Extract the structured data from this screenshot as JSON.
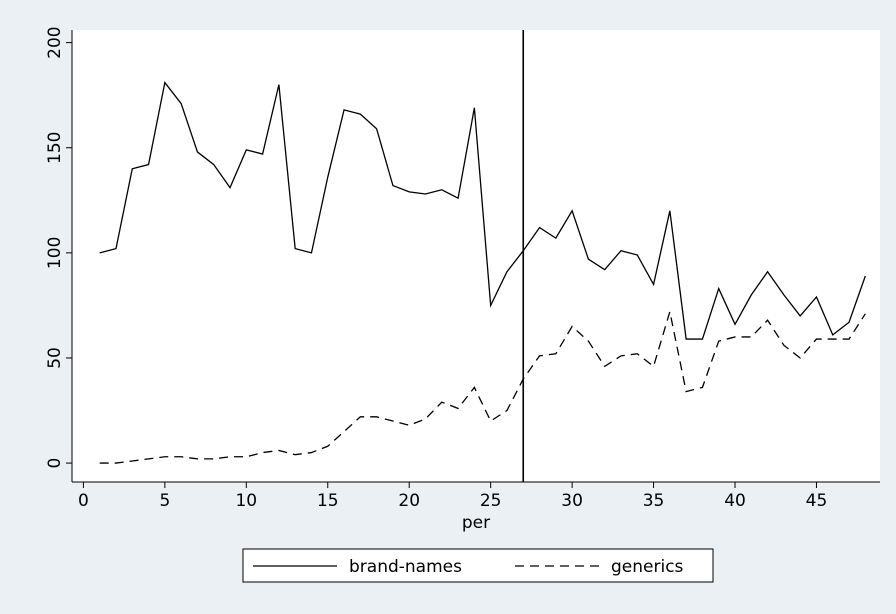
{
  "chart_data": {
    "type": "line",
    "x_label": "per",
    "x": [
      1,
      2,
      3,
      4,
      5,
      6,
      7,
      8,
      9,
      10,
      11,
      12,
      13,
      14,
      15,
      16,
      17,
      18,
      19,
      20,
      21,
      22,
      23,
      24,
      25,
      26,
      27,
      28,
      29,
      30,
      31,
      32,
      33,
      34,
      35,
      36,
      37,
      38,
      39,
      40,
      41,
      42,
      43,
      44,
      45,
      46,
      47,
      48
    ],
    "series": [
      {
        "name": "brand-names",
        "color": "#000000",
        "style": "solid",
        "values": [
          100,
          102,
          140,
          142,
          181,
          171,
          148,
          142,
          131,
          149,
          147,
          180,
          102,
          100,
          136,
          168,
          166,
          159,
          132,
          129,
          128,
          130,
          126,
          169,
          75,
          91,
          101,
          112,
          107,
          120,
          97,
          92,
          101,
          99,
          85,
          120,
          59,
          59,
          83,
          66,
          80,
          91,
          80,
          70,
          79,
          61,
          67,
          89
        ]
      },
      {
        "name": "generics",
        "color": "#000000",
        "style": "dashed",
        "values": [
          0,
          0,
          1,
          2,
          3,
          3,
          2,
          2,
          3,
          3,
          5,
          6,
          4,
          5,
          8,
          15,
          22,
          22,
          20,
          18,
          21,
          29,
          26,
          36,
          20,
          25,
          40,
          51,
          52,
          65,
          58,
          46,
          51,
          52,
          46,
          72,
          34,
          36,
          58,
          60,
          60,
          68,
          56,
          50,
          59,
          59,
          59,
          71
        ]
      }
    ],
    "xline": 27,
    "xlim": [
      -0.7,
      48.9
    ],
    "ylim": [
      -9,
      206
    ],
    "xticks": [
      0,
      5,
      10,
      15,
      20,
      25,
      30,
      35,
      40,
      45
    ],
    "yticks": [
      0,
      50,
      100,
      150,
      200
    ],
    "grid": false,
    "legend": "bottom"
  }
}
